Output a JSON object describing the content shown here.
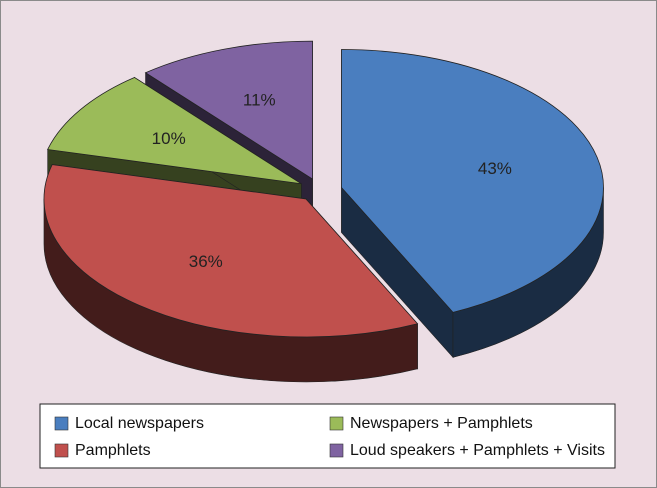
{
  "chart_data": {
    "type": "pie3d",
    "categories": [
      "Local newspapers",
      "Pamphlets",
      "Newspapers + Pamphlets",
      "Loud speakers + Pamphlets + Visits"
    ],
    "values": [
      43,
      36,
      10,
      11
    ],
    "value_labels": [
      "43%",
      "36%",
      "10%",
      "11%"
    ],
    "colors": [
      "#4a7ebf",
      "#c0504d",
      "#9bbb59",
      "#7f63a1"
    ],
    "legend": "bottom"
  }
}
